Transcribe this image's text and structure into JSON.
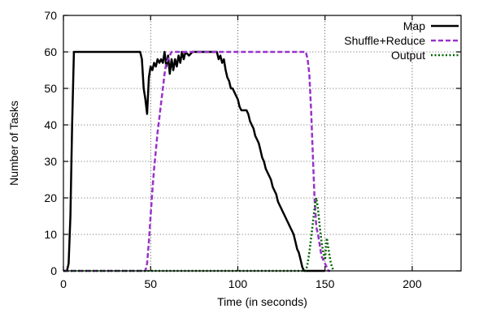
{
  "chart_data": {
    "type": "line",
    "title": "",
    "xlabel": "Time (in seconds)",
    "ylabel": "Number of Tasks",
    "xlim": [
      0,
      228
    ],
    "ylim": [
      0,
      70
    ],
    "x_ticks": [
      0,
      50,
      100,
      150,
      200
    ],
    "y_ticks": [
      0,
      10,
      20,
      30,
      40,
      50,
      60,
      70
    ],
    "grid": "dotted, at x=50,100,150,200 and y=10..60",
    "legend_position": "top-right",
    "series": [
      {
        "name": "Map",
        "color": "#000000",
        "style": "solid",
        "points": [
          [
            0,
            0
          ],
          [
            1,
            0
          ],
          [
            2,
            0
          ],
          [
            3,
            2
          ],
          [
            4,
            15
          ],
          [
            5,
            40
          ],
          [
            6,
            60
          ],
          [
            10,
            60
          ],
          [
            20,
            60
          ],
          [
            30,
            60
          ],
          [
            40,
            60
          ],
          [
            44,
            60
          ],
          [
            45,
            58
          ],
          [
            46,
            50
          ],
          [
            47,
            47
          ],
          [
            48,
            43
          ],
          [
            49,
            53
          ],
          [
            50,
            56
          ],
          [
            51,
            55
          ],
          [
            52,
            57
          ],
          [
            53,
            56
          ],
          [
            54,
            58
          ],
          [
            55,
            57
          ],
          [
            56,
            58
          ],
          [
            57,
            57
          ],
          [
            58,
            60
          ],
          [
            59,
            56
          ],
          [
            60,
            59
          ],
          [
            61,
            54
          ],
          [
            62,
            58
          ],
          [
            63,
            55
          ],
          [
            64,
            58
          ],
          [
            65,
            56
          ],
          [
            66,
            59
          ],
          [
            67,
            57
          ],
          [
            68,
            60
          ],
          [
            69,
            58
          ],
          [
            70,
            60
          ],
          [
            72,
            59
          ],
          [
            74,
            60
          ],
          [
            76,
            60
          ],
          [
            80,
            60
          ],
          [
            85,
            60
          ],
          [
            88,
            60
          ],
          [
            89,
            58
          ],
          [
            90,
            59
          ],
          [
            91,
            57
          ],
          [
            92,
            58
          ],
          [
            93,
            55
          ],
          [
            94,
            53
          ],
          [
            95,
            52
          ],
          [
            96,
            50
          ],
          [
            97,
            50
          ],
          [
            98,
            49
          ],
          [
            99,
            48
          ],
          [
            100,
            47
          ],
          [
            101,
            45
          ],
          [
            102,
            44
          ],
          [
            103,
            44
          ],
          [
            105,
            44
          ],
          [
            106,
            43
          ],
          [
            107,
            41
          ],
          [
            108,
            40
          ],
          [
            109,
            39
          ],
          [
            110,
            37
          ],
          [
            111,
            36
          ],
          [
            112,
            35
          ],
          [
            113,
            33
          ],
          [
            114,
            31
          ],
          [
            115,
            30
          ],
          [
            116,
            28
          ],
          [
            117,
            27
          ],
          [
            118,
            26
          ],
          [
            119,
            25
          ],
          [
            120,
            23
          ],
          [
            121,
            22
          ],
          [
            122,
            21
          ],
          [
            123,
            19
          ],
          [
            124,
            18
          ],
          [
            125,
            17
          ],
          [
            126,
            16
          ],
          [
            127,
            15
          ],
          [
            128,
            14
          ],
          [
            129,
            13
          ],
          [
            130,
            12
          ],
          [
            131,
            11
          ],
          [
            132,
            10
          ],
          [
            133,
            8
          ],
          [
            134,
            6
          ],
          [
            135,
            5
          ],
          [
            136,
            3
          ],
          [
            137,
            1
          ],
          [
            138,
            0
          ],
          [
            140,
            0
          ],
          [
            150,
            0
          ]
        ]
      },
      {
        "name": "Shuffle+Reduce",
        "color": "#9932cc",
        "style": "dashed",
        "points": [
          [
            0,
            0
          ],
          [
            46,
            0
          ],
          [
            47,
            0
          ],
          [
            48,
            2
          ],
          [
            49,
            8
          ],
          [
            50,
            15
          ],
          [
            51,
            22
          ],
          [
            52,
            28
          ],
          [
            53,
            33
          ],
          [
            54,
            38
          ],
          [
            55,
            42
          ],
          [
            56,
            46
          ],
          [
            57,
            50
          ],
          [
            58,
            54
          ],
          [
            59,
            57
          ],
          [
            60,
            58
          ],
          [
            61,
            59
          ],
          [
            62,
            60
          ],
          [
            70,
            60
          ],
          [
            80,
            60
          ],
          [
            90,
            60
          ],
          [
            100,
            60
          ],
          [
            110,
            60
          ],
          [
            120,
            60
          ],
          [
            130,
            60
          ],
          [
            139,
            60
          ],
          [
            140,
            58
          ],
          [
            141,
            54
          ],
          [
            142,
            44
          ],
          [
            143,
            32
          ],
          [
            144,
            20
          ],
          [
            145,
            12
          ],
          [
            146,
            10
          ],
          [
            147,
            7
          ],
          [
            148,
            4
          ],
          [
            149,
            3
          ],
          [
            150,
            2
          ],
          [
            151,
            1
          ],
          [
            152,
            0
          ],
          [
            153,
            0
          ]
        ]
      },
      {
        "name": "Output",
        "color": "#006400",
        "style": "dotted",
        "points": [
          [
            0,
            0
          ],
          [
            138,
            0
          ],
          [
            139,
            0
          ],
          [
            140,
            2
          ],
          [
            141,
            5
          ],
          [
            142,
            9
          ],
          [
            143,
            13
          ],
          [
            144,
            17
          ],
          [
            145,
            20
          ],
          [
            146,
            17
          ],
          [
            147,
            12
          ],
          [
            148,
            8
          ],
          [
            149,
            5
          ],
          [
            150,
            3
          ],
          [
            151,
            9
          ],
          [
            152,
            6
          ],
          [
            153,
            3
          ],
          [
            154,
            1
          ],
          [
            155,
            0
          ]
        ]
      }
    ]
  }
}
